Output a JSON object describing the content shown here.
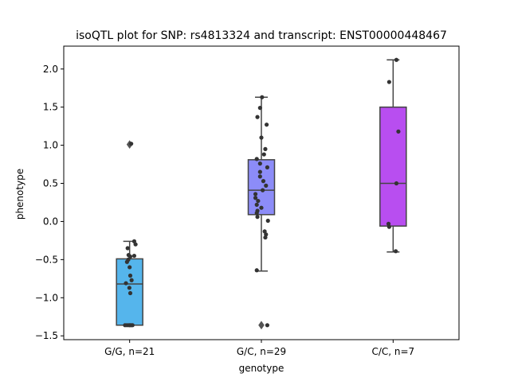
{
  "chart_data": {
    "type": "box",
    "title": "isoQTL plot for SNP: rs4813324 and transcript: ENST00000448467",
    "xlabel": "genotype",
    "ylabel": "phenotype",
    "ylim": [
      -1.55,
      2.3
    ],
    "yticks": [
      -1.5,
      -1.0,
      -0.5,
      0.0,
      0.5,
      1.0,
      1.5,
      2.0
    ],
    "ytick_labels": [
      "−1.5",
      "−1.0",
      "−0.5",
      "0.0",
      "0.5",
      "1.0",
      "1.5",
      "2.0"
    ],
    "grid": false,
    "categories": [
      "G/G, n=21",
      "G/C, n=29",
      "C/C, n=7"
    ],
    "boxes": [
      {
        "category": "G/G, n=21",
        "color": "#55b5ec",
        "q1": -1.36,
        "median": -0.82,
        "q3": -0.49,
        "whisker_low": -1.36,
        "whisker_high": -0.26,
        "fliers": [
          1.01
        ],
        "points": [
          {
            "offset": -0.35,
            "y": -1.36
          },
          {
            "offset": -0.2,
            "y": -1.36
          },
          {
            "offset": -0.05,
            "y": -1.36
          },
          {
            "offset": 0.03,
            "y": -1.36
          },
          {
            "offset": 0.12,
            "y": -1.36
          },
          {
            "offset": 0.22,
            "y": -1.36
          },
          {
            "offset": 0.05,
            "y": -0.94
          },
          {
            "offset": -0.02,
            "y": -0.87
          },
          {
            "offset": -0.28,
            "y": -0.81
          },
          {
            "offset": 0.15,
            "y": -0.77
          },
          {
            "offset": 0.05,
            "y": -0.71
          },
          {
            "offset": 0.0,
            "y": -0.6
          },
          {
            "offset": -0.2,
            "y": -0.53
          },
          {
            "offset": -0.1,
            "y": -0.5
          },
          {
            "offset": 0.35,
            "y": -0.45
          },
          {
            "offset": -0.08,
            "y": -0.44
          },
          {
            "offset": -0.15,
            "y": -0.35
          },
          {
            "offset": 0.45,
            "y": -0.3
          },
          {
            "offset": 0.35,
            "y": -0.26
          },
          {
            "offset": 0.05,
            "y": -0.46
          },
          {
            "offset": 0.12,
            "y": 1.02
          }
        ]
      },
      {
        "category": "G/C, n=29",
        "color": "#8c8cf8",
        "q1": 0.09,
        "median": 0.41,
        "q3": 0.81,
        "whisker_low": -0.65,
        "whisker_high": 1.63,
        "fliers": [
          -1.36
        ],
        "points": [
          {
            "offset": 0.05,
            "y": 1.63
          },
          {
            "offset": -0.1,
            "y": 1.49
          },
          {
            "offset": -0.3,
            "y": 1.37
          },
          {
            "offset": 0.4,
            "y": 1.27
          },
          {
            "offset": 0.0,
            "y": 1.1
          },
          {
            "offset": 0.3,
            "y": 0.95
          },
          {
            "offset": 0.2,
            "y": 0.88
          },
          {
            "offset": -0.35,
            "y": 0.82
          },
          {
            "offset": -0.1,
            "y": 0.76
          },
          {
            "offset": 0.45,
            "y": 0.71
          },
          {
            "offset": -0.1,
            "y": 0.65
          },
          {
            "offset": -0.1,
            "y": 0.59
          },
          {
            "offset": 0.15,
            "y": 0.53
          },
          {
            "offset": 0.35,
            "y": 0.47
          },
          {
            "offset": 0.1,
            "y": 0.41
          },
          {
            "offset": -0.45,
            "y": 0.36
          },
          {
            "offset": -0.45,
            "y": 0.31
          },
          {
            "offset": -0.25,
            "y": 0.27
          },
          {
            "offset": -0.35,
            "y": 0.22
          },
          {
            "offset": 0.0,
            "y": 0.18
          },
          {
            "offset": -0.3,
            "y": 0.14
          },
          {
            "offset": -0.35,
            "y": 0.11
          },
          {
            "offset": -0.3,
            "y": 0.06
          },
          {
            "offset": 0.5,
            "y": 0.01
          },
          {
            "offset": 0.25,
            "y": -0.13
          },
          {
            "offset": 0.35,
            "y": -0.17
          },
          {
            "offset": 0.3,
            "y": -0.21
          },
          {
            "offset": -0.35,
            "y": -0.64
          },
          {
            "offset": 0.45,
            "y": -1.36
          }
        ]
      },
      {
        "category": "C/C, n=7",
        "color": "#b84ef0",
        "q1": -0.06,
        "median": 0.5,
        "q3": 1.5,
        "whisker_low": -0.4,
        "whisker_high": 2.12,
        "fliers": [],
        "points": [
          {
            "offset": 0.25,
            "y": 2.12
          },
          {
            "offset": -0.3,
            "y": 1.83
          },
          {
            "offset": 0.4,
            "y": 1.18
          },
          {
            "offset": 0.25,
            "y": 0.5
          },
          {
            "offset": -0.35,
            "y": -0.03
          },
          {
            "offset": -0.3,
            "y": -0.07
          },
          {
            "offset": 0.2,
            "y": -0.39
          }
        ]
      }
    ]
  }
}
